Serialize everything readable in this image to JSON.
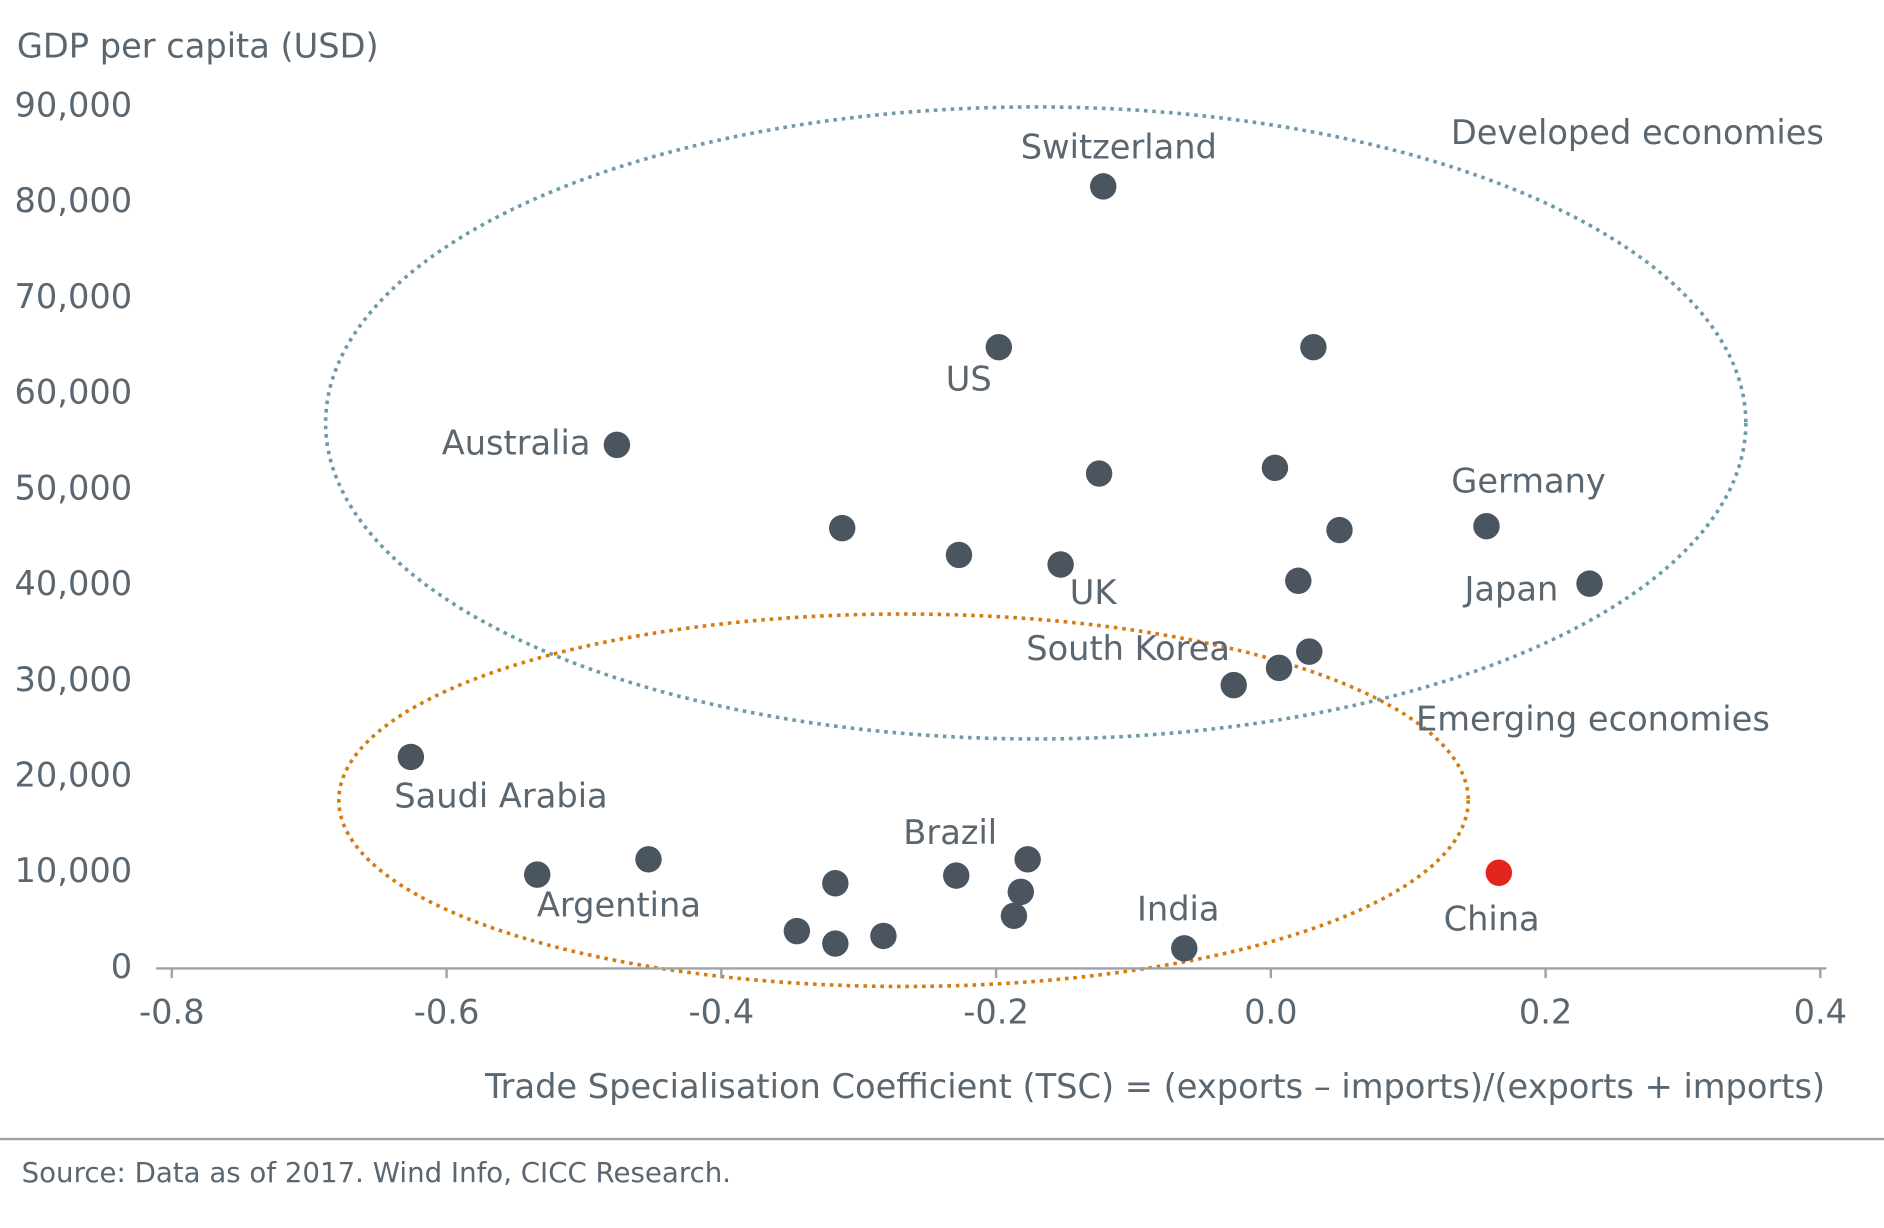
{
  "chart_data": {
    "type": "scatter",
    "y_label": "GDP per capita (USD)",
    "x_label": "Trade Specialisation Coefficient (TSC) = (exports – imports)/(exports + imports)",
    "source": "Source: Data as of 2017. Wind Info, CICC Research.",
    "annotations": [
      "Developed economies",
      "Emerging economies"
    ],
    "xlim": [
      -0.8,
      0.4
    ],
    "xticks": [
      -0.8,
      -0.6,
      -0.4,
      -0.2,
      {
        "value": 0,
        "label": "0.0"
      },
      0.2,
      0.4
    ],
    "ylim": [
      0,
      90000
    ],
    "yticks": [
      0,
      {
        "value": 10000,
        "label": "10,000"
      },
      {
        "value": 20000,
        "label": "20,000"
      },
      {
        "value": 30000,
        "label": "30,000"
      },
      {
        "value": 40000,
        "label": "40,000"
      },
      {
        "value": 50000,
        "label": "50,000"
      },
      {
        "value": 60000,
        "label": "60,000"
      },
      {
        "value": 70000,
        "label": "70,000"
      },
      {
        "value": 80000,
        "label": "80,000"
      },
      {
        "value": 90000,
        "label": "90,000"
      }
    ],
    "x": [
      -0.122,
      -0.198,
      0.031,
      -0.476,
      -0.125,
      0.003,
      -0.312,
      -0.227,
      -0.153,
      0.05,
      0.157,
      0.232,
      0.02,
      0.028,
      0.006,
      -0.027,
      -0.626,
      -0.534,
      -0.453,
      -0.317,
      -0.345,
      -0.317,
      -0.282,
      -0.229,
      -0.177,
      -0.182,
      -0.187,
      -0.063,
      0.166
    ],
    "values": [
      81700,
      64900,
      64900,
      54700,
      51700,
      52300,
      46000,
      43200,
      42200,
      45800,
      46200,
      40200,
      40500,
      33100,
      31400,
      29600,
      22100,
      9800,
      11400,
      8900,
      3900,
      2600,
      3400,
      9700,
      11400,
      8000,
      5500,
      2100,
      10000
    ],
    "labels": [
      "Switzerland",
      "US",
      null,
      "Australia",
      null,
      null,
      null,
      null,
      "UK",
      null,
      "Germany",
      "Japan",
      null,
      "South Korea",
      null,
      null,
      "Saudi Arabia",
      "Argentina",
      null,
      null,
      null,
      null,
      null,
      "Brazil",
      null,
      null,
      null,
      "India",
      "China"
    ],
    "colors": [
      "#4a5560",
      "#4a5560",
      "#4a5560",
      "#4a5560",
      "#4a5560",
      "#4a5560",
      "#4a5560",
      "#4a5560",
      "#4a5560",
      "#4a5560",
      "#4a5560",
      "#4a5560",
      "#4a5560",
      "#4a5560",
      "#4a5560",
      "#4a5560",
      "#4a5560",
      "#4a5560",
      "#4a5560",
      "#4a5560",
      "#4a5560",
      "#4a5560",
      "#4a5560",
      "#4a5560",
      "#4a5560",
      "#4a5560",
      "#4a5560",
      "#4a5560",
      "#e3251f"
    ]
  }
}
